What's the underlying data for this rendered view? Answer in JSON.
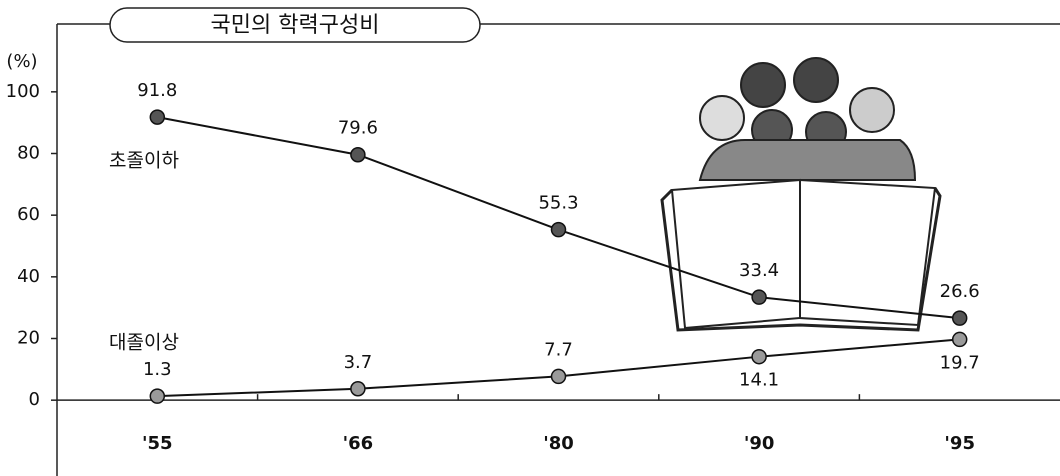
{
  "chart_data": {
    "type": "line",
    "title": "국민의 학력구성비",
    "y_label": "(%)",
    "categories": [
      "'55",
      "'66",
      "'80",
      "'90",
      "'95"
    ],
    "series": [
      {
        "name": "초졸이하",
        "color": "#555555",
        "values": [
          91.8,
          79.6,
          55.3,
          33.4,
          26.6
        ]
      },
      {
        "name": "대졸이상",
        "color": "#9a9a9a",
        "values": [
          1.3,
          3.7,
          7.7,
          14.1,
          19.7
        ]
      }
    ],
    "ylim": [
      -22,
      122
    ],
    "yticks": [
      0,
      20,
      40,
      60,
      80,
      100
    ],
    "grid": false
  }
}
